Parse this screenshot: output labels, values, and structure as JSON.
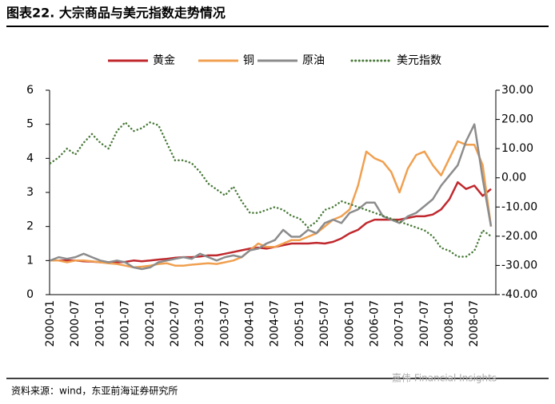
{
  "chart_data": {
    "type": "line",
    "title": "图表22. 大宗商品与美元指数走势情况",
    "source": "资料来源：wind，东亚前海证券研究所",
    "watermark": "嘉伟 Financial Insights",
    "categories": [
      "2000-01",
      null,
      null,
      "2000-07",
      null,
      null,
      "2001-01",
      null,
      null,
      "2001-07",
      null,
      null,
      "2002-01",
      null,
      null,
      "2002-07",
      null,
      null,
      "2003-01",
      null,
      null,
      "2003-07",
      null,
      null,
      "2004-01",
      null,
      null,
      "2004-07",
      null,
      null,
      "2005-01",
      null,
      null,
      "2005-07",
      null,
      null,
      "2006-01",
      null,
      null,
      "2006-07",
      null,
      null,
      "2007-01",
      null,
      null,
      "2007-07",
      null,
      null,
      "2008-01",
      null,
      null,
      "2008-07",
      null,
      null
    ],
    "series": [
      {
        "name": "黄金",
        "color": "#c0282d",
        "axis": "y",
        "values": [
          1,
          1,
          1,
          1,
          0.98,
          0.97,
          0.95,
          0.95,
          0.95,
          0.96,
          1.0,
          0.98,
          1.0,
          1.03,
          1.05,
          1.08,
          1.1,
          1.1,
          1.12,
          1.15,
          1.15,
          1.2,
          1.25,
          1.3,
          1.35,
          1.38,
          1.35,
          1.4,
          1.45,
          1.5,
          1.5,
          1.5,
          1.52,
          1.5,
          1.55,
          1.65,
          1.8,
          1.9,
          2.1,
          2.2,
          2.2,
          2.2,
          2.2,
          2.25,
          2.3,
          2.3,
          2.35,
          2.5,
          2.8,
          3.3,
          3.1,
          3.2,
          2.9,
          3.1
        ]
      },
      {
        "name": "铜",
        "color": "#f0a050",
        "axis": "y",
        "values": [
          1.0,
          1.0,
          0.95,
          1.0,
          1.0,
          0.98,
          0.95,
          0.92,
          0.9,
          0.85,
          0.8,
          0.82,
          0.85,
          0.9,
          0.92,
          0.85,
          0.85,
          0.88,
          0.9,
          0.92,
          0.9,
          0.95,
          1.0,
          1.1,
          1.3,
          1.5,
          1.4,
          1.4,
          1.5,
          1.6,
          1.6,
          1.7,
          1.8,
          2.0,
          2.2,
          2.3,
          2.5,
          3.2,
          4.2,
          4.0,
          3.9,
          3.6,
          3.0,
          3.7,
          4.1,
          4.2,
          3.8,
          3.5,
          4.0,
          4.5,
          4.4,
          4.4,
          3.8,
          2.0
        ]
      },
      {
        "name": "原油",
        "color": "#8c8c8c",
        "axis": "y",
        "values": [
          1.0,
          1.1,
          1.05,
          1.1,
          1.2,
          1.1,
          1.0,
          0.95,
          1.0,
          0.95,
          0.8,
          0.75,
          0.8,
          0.95,
          1.0,
          1.05,
          1.1,
          1.05,
          1.2,
          1.1,
          1.0,
          1.1,
          1.15,
          1.1,
          1.3,
          1.35,
          1.5,
          1.6,
          1.9,
          1.7,
          1.7,
          1.9,
          1.8,
          2.1,
          2.2,
          2.1,
          2.4,
          2.5,
          2.7,
          2.7,
          2.3,
          2.2,
          2.1,
          2.3,
          2.4,
          2.6,
          2.8,
          3.2,
          3.5,
          3.8,
          4.5,
          5.0,
          3.4,
          2.0
        ]
      },
      {
        "name": "美元指数",
        "color": "#4a7a3a",
        "axis": "y2",
        "dotted": true,
        "values": [
          5,
          7,
          10,
          8,
          12,
          15,
          12,
          10,
          16,
          19,
          16,
          17,
          19,
          18,
          12,
          6,
          6,
          5,
          2,
          -2,
          -4,
          -6,
          -3,
          -8,
          -12,
          -12,
          -11,
          -10,
          -11,
          -13,
          -14,
          -17,
          -15,
          -11,
          -10,
          -8,
          -9,
          -10,
          -11,
          -12,
          -13,
          -14,
          -15,
          -16,
          -17,
          -18,
          -20,
          -24,
          -25,
          -27,
          -27,
          -25,
          -18,
          -20
        ]
      }
    ],
    "ylim": [
      0,
      6
    ],
    "yticks": [
      0,
      1,
      2,
      3,
      4,
      5,
      6
    ],
    "y2lim": [
      -40,
      30
    ],
    "y2ticks": [
      {
        "value": -40,
        "label": "-40.00"
      },
      {
        "value": -30,
        "label": "-30.00"
      },
      {
        "value": -20,
        "label": "-20.00"
      },
      {
        "value": -10,
        "label": "-10.00"
      },
      {
        "value": 0,
        "label": "0.00"
      },
      {
        "value": 10,
        "label": "10.00"
      },
      {
        "value": 20,
        "label": "20.00"
      },
      {
        "value": 30,
        "label": "30.00"
      }
    ],
    "legend": "top",
    "grid": false
  }
}
